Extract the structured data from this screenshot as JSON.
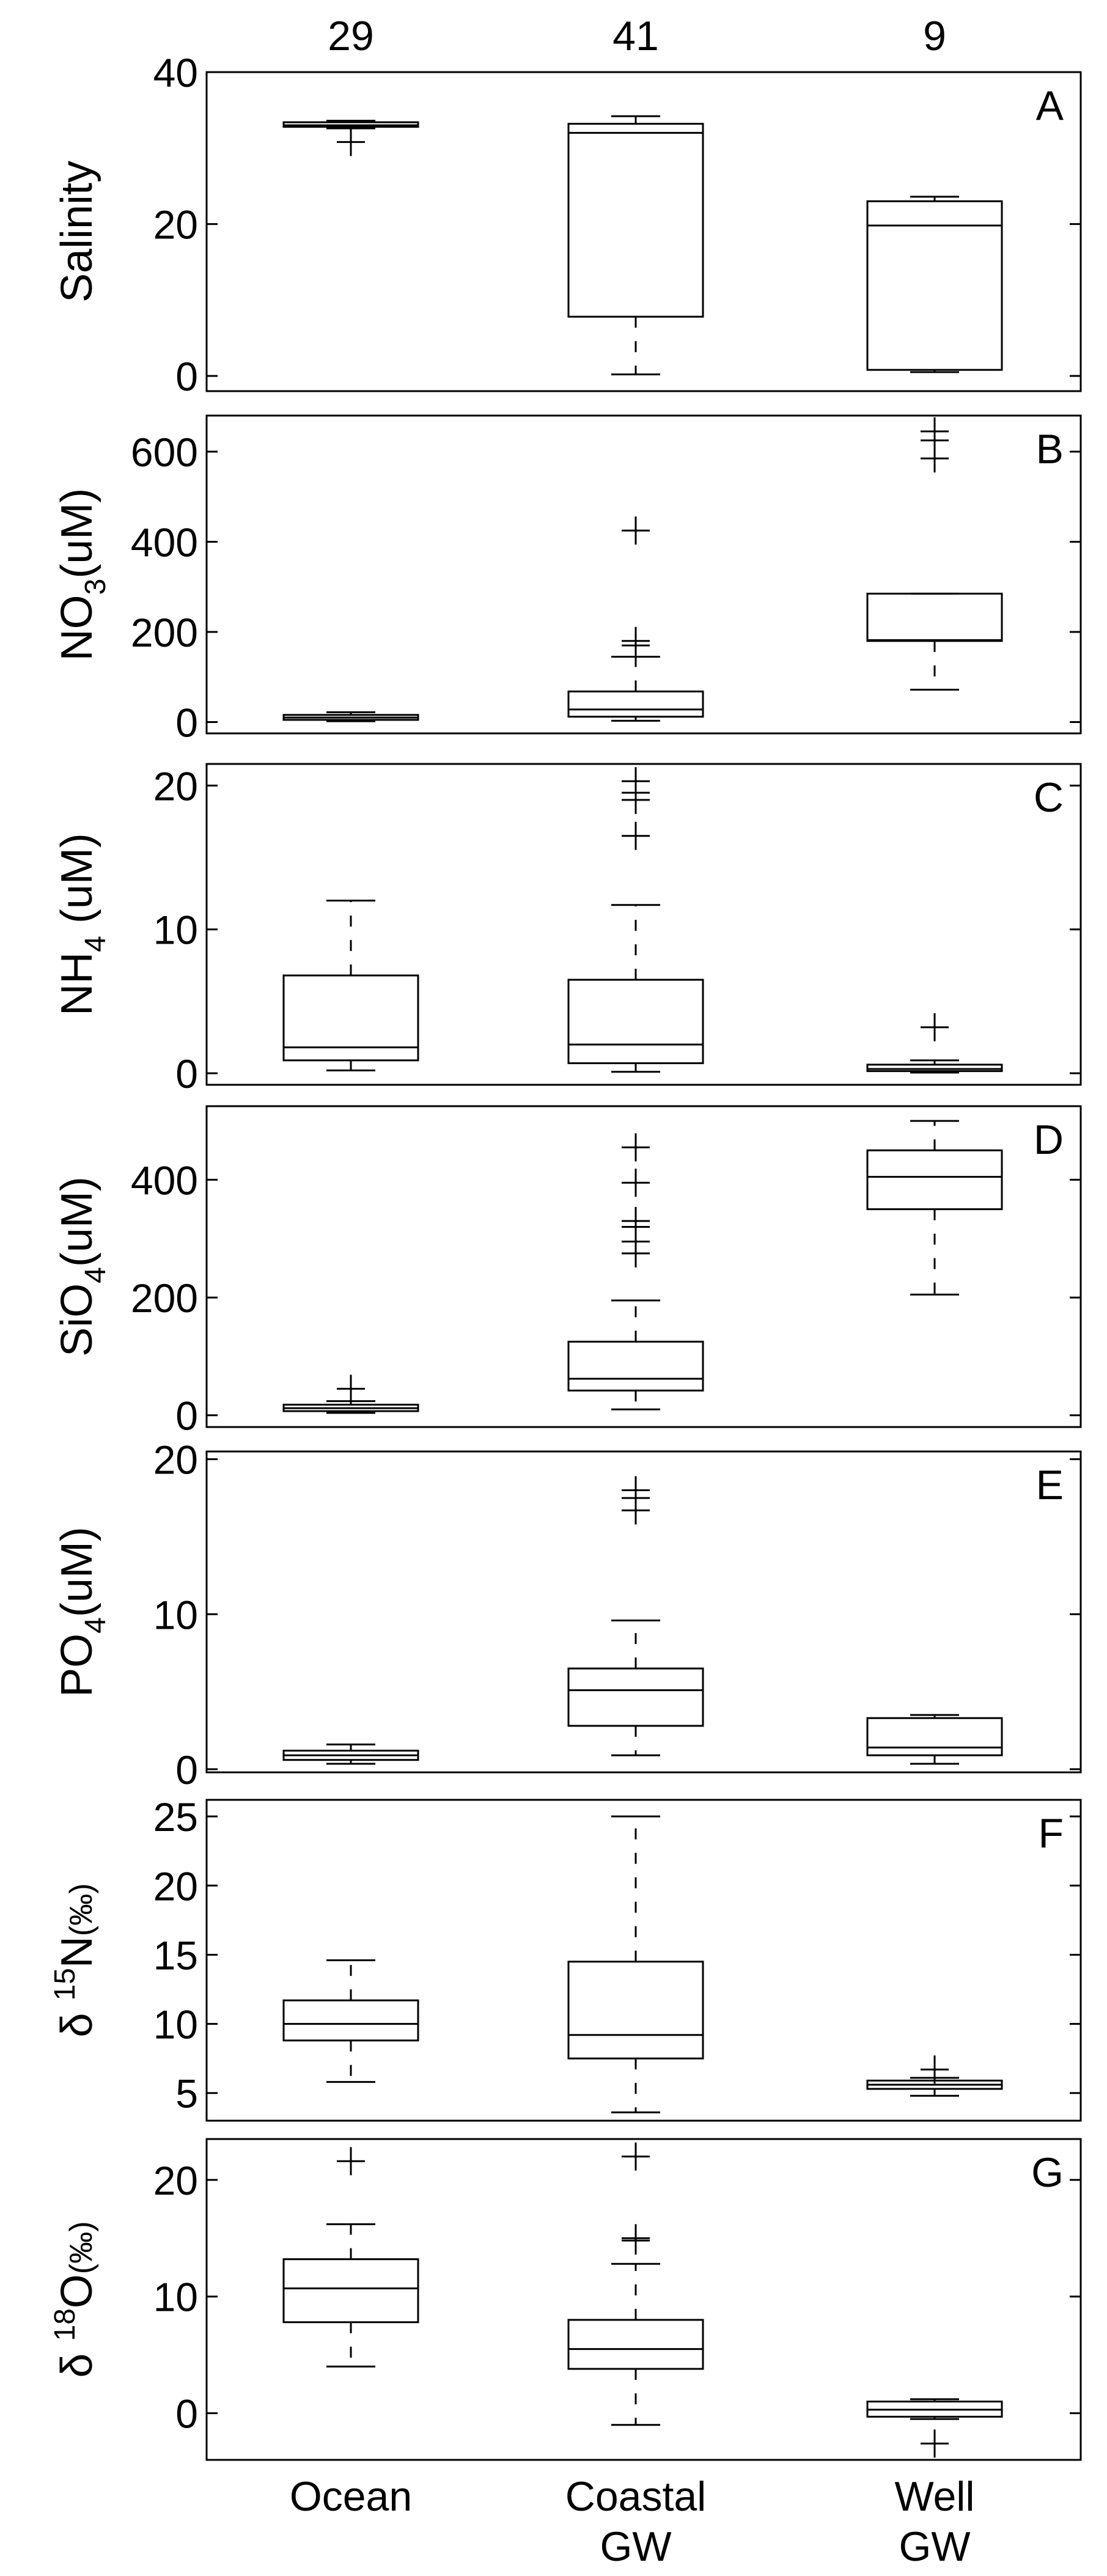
{
  "figure": {
    "groups": [
      "Ocean",
      "Coastal",
      "Well"
    ],
    "group_sublabels": [
      "",
      "GW",
      "GW"
    ],
    "counts": [
      "29",
      "41",
      "9"
    ]
  },
  "chart_data": [
    {
      "type": "boxplot",
      "panel": "A",
      "ylabel": "Salinity",
      "ylim": [
        -2,
        40
      ],
      "yticks": [
        0,
        20,
        40
      ],
      "boxes": [
        {
          "group": "Ocean",
          "min": 32.6,
          "q1": 32.8,
          "median": 33.0,
          "q3": 33.4,
          "max": 33.6,
          "outliers": [
            30.8
          ]
        },
        {
          "group": "Coastal GW",
          "min": 0.2,
          "q1": 7.8,
          "median": 32.0,
          "q3": 33.2,
          "max": 34.2,
          "outliers": []
        },
        {
          "group": "Well GW",
          "min": 0.5,
          "q1": 0.8,
          "median": 19.8,
          "q3": 23.0,
          "max": 23.6,
          "outliers": []
        }
      ]
    },
    {
      "type": "boxplot",
      "panel": "B",
      "ylabel": "NO",
      "ylabel_sub": "3",
      "ylabel_tail": "(uM)",
      "ylim": [
        -25,
        680
      ],
      "yticks": [
        0,
        200,
        400,
        600
      ],
      "boxes": [
        {
          "group": "Ocean",
          "min": 2,
          "q1": 5,
          "median": 10,
          "q3": 16,
          "max": 22,
          "outliers": []
        },
        {
          "group": "Coastal GW",
          "min": 3,
          "q1": 12,
          "median": 28,
          "q3": 68,
          "max": 145,
          "outliers": [
            170,
            180,
            425
          ]
        },
        {
          "group": "Well GW",
          "min": 72,
          "q1": 180,
          "median": 182,
          "q3": 285,
          "max": 285,
          "outliers": [
            585,
            625,
            645
          ]
        }
      ]
    },
    {
      "type": "boxplot",
      "panel": "C",
      "ylabel": "NH",
      "ylabel_sub": "4",
      "ylabel_tail": " (uM)",
      "ylim": [
        -0.8,
        21.5
      ],
      "yticks": [
        0,
        10,
        20
      ],
      "boxes": [
        {
          "group": "Ocean",
          "min": 0.2,
          "q1": 0.9,
          "median": 1.8,
          "q3": 6.8,
          "max": 12.0,
          "outliers": []
        },
        {
          "group": "Coastal GW",
          "min": 0.1,
          "q1": 0.7,
          "median": 2.0,
          "q3": 6.5,
          "max": 11.7,
          "outliers": [
            16.5,
            19.0,
            19.5,
            20.3
          ]
        },
        {
          "group": "Well GW",
          "min": 0.05,
          "q1": 0.15,
          "median": 0.3,
          "q3": 0.6,
          "max": 0.9,
          "outliers": [
            3.2
          ]
        }
      ]
    },
    {
      "type": "boxplot",
      "panel": "D",
      "ylabel": "SiO",
      "ylabel_sub": "4",
      "ylabel_tail": "(uM)",
      "ylim": [
        -20,
        525
      ],
      "yticks": [
        0,
        200,
        400
      ],
      "boxes": [
        {
          "group": "Ocean",
          "min": 4,
          "q1": 7,
          "median": 12,
          "q3": 18,
          "max": 24,
          "outliers": [
            45
          ]
        },
        {
          "group": "Coastal GW",
          "min": 10,
          "q1": 42,
          "median": 62,
          "q3": 125,
          "max": 195,
          "outliers": [
            275,
            295,
            320,
            330,
            395,
            455
          ]
        },
        {
          "group": "Well GW",
          "min": 205,
          "q1": 350,
          "median": 405,
          "q3": 450,
          "max": 500,
          "outliers": []
        }
      ]
    },
    {
      "type": "boxplot",
      "panel": "E",
      "ylabel": "PO",
      "ylabel_sub": "4",
      "ylabel_tail": "(uM)",
      "ylim": [
        -0.2,
        20.5
      ],
      "yticks": [
        0,
        10,
        20
      ],
      "boxes": [
        {
          "group": "Ocean",
          "min": 0.35,
          "q1": 0.6,
          "median": 0.9,
          "q3": 1.2,
          "max": 1.6,
          "outliers": []
        },
        {
          "group": "Coastal GW",
          "min": 0.9,
          "q1": 2.8,
          "median": 5.1,
          "q3": 6.5,
          "max": 9.6,
          "outliers": [
            16.7,
            17.5,
            18.0
          ]
        },
        {
          "group": "Well GW",
          "min": 0.35,
          "q1": 0.9,
          "median": 1.4,
          "q3": 3.3,
          "max": 3.5,
          "outliers": []
        }
      ]
    },
    {
      "type": "boxplot",
      "panel": "F",
      "ylabel": "δ",
      "ylabel_sup": "15",
      "ylabel_tail": "N",
      "ylabel_unit": "(‰)",
      "ylim": [
        3,
        26.2
      ],
      "yticks": [
        5,
        10,
        15,
        20,
        25
      ],
      "boxes": [
        {
          "group": "Ocean",
          "min": 5.8,
          "q1": 8.8,
          "median": 10.0,
          "q3": 11.7,
          "max": 14.6,
          "outliers": []
        },
        {
          "group": "Coastal GW",
          "min": 3.6,
          "q1": 7.5,
          "median": 9.2,
          "q3": 14.5,
          "max": 25.0,
          "outliers": []
        },
        {
          "group": "Well GW",
          "min": 4.8,
          "q1": 5.3,
          "median": 5.6,
          "q3": 5.9,
          "max": 6.1,
          "outliers": [
            6.7
          ]
        }
      ]
    },
    {
      "type": "boxplot",
      "panel": "G",
      "ylabel": "δ",
      "ylabel_sup": "18",
      "ylabel_tail": "O",
      "ylabel_unit": "(‰)",
      "ylim": [
        -4,
        23.5
      ],
      "yticks": [
        0,
        10,
        20
      ],
      "boxes": [
        {
          "group": "Ocean",
          "min": 4.0,
          "q1": 7.8,
          "median": 10.7,
          "q3": 13.2,
          "max": 16.2,
          "outliers": [
            21.6
          ]
        },
        {
          "group": "Coastal GW",
          "min": -1.0,
          "q1": 3.8,
          "median": 5.5,
          "q3": 8.0,
          "max": 12.8,
          "outliers": [
            14.8,
            15.0,
            22.0
          ]
        },
        {
          "group": "Well GW",
          "min": -0.5,
          "q1": -0.3,
          "median": 0.3,
          "q3": 1.0,
          "max": 1.2,
          "outliers": [
            -2.6
          ]
        }
      ]
    }
  ]
}
